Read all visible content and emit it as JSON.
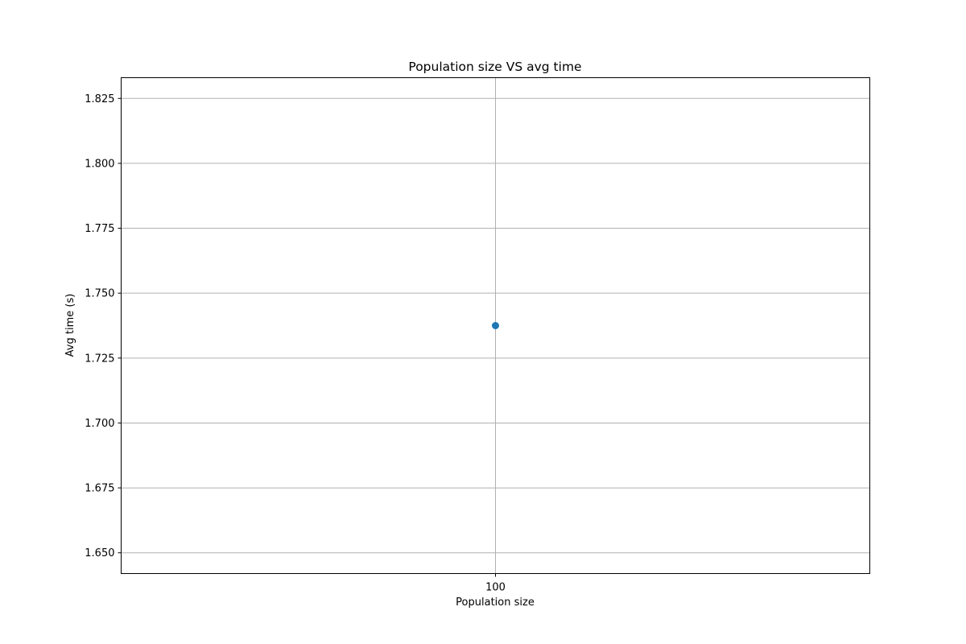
{
  "chart_data": {
    "type": "scatter",
    "title": "Population size VS avg time",
    "xlabel": "Population size",
    "ylabel": "Avg time (s)",
    "x_ticks": [
      "100"
    ],
    "y_ticks": [
      "1.650",
      "1.675",
      "1.700",
      "1.725",
      "1.750",
      "1.775",
      "1.800",
      "1.825"
    ],
    "ylim": [
      1.642,
      1.833
    ],
    "grid": true,
    "series": [
      {
        "x": [
          100
        ],
        "y": [
          1.7375
        ],
        "color": "#1f77b4"
      }
    ]
  }
}
